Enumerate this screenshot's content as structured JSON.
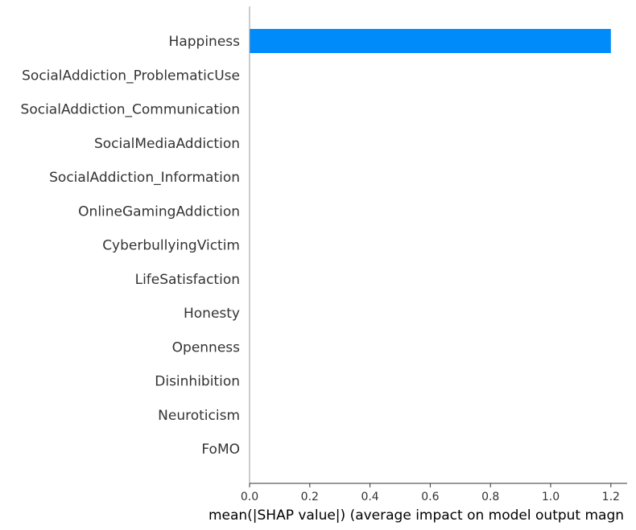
{
  "chart_data": {
    "type": "bar",
    "orientation": "horizontal",
    "categories": [
      "Happiness",
      "SocialAddiction_ProblematicUse",
      "SocialAddiction_Communication",
      "SocialMediaAddiction",
      "SocialAddiction_Information",
      "OnlineGamingAddiction",
      "CyberbullyingVictim",
      "LifeSatisfaction",
      "Honesty",
      "Openness",
      "Disinhibition",
      "Neuroticism",
      "FoMO"
    ],
    "values": [
      1.2,
      0,
      0,
      0,
      0,
      0,
      0,
      0,
      0,
      0,
      0,
      0,
      0
    ],
    "xlabel": "mean(|SHAP value|) (average impact on model output magn",
    "ylabel": "",
    "title": "",
    "xlim": [
      0,
      1.26
    ],
    "xticks": [
      "0.0",
      "0.2",
      "0.4",
      "0.6",
      "0.8",
      "1.0",
      "1.2"
    ],
    "grid": false,
    "bar_color": "#008bfb"
  }
}
